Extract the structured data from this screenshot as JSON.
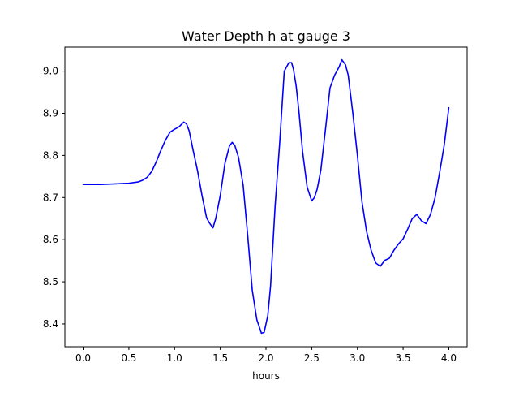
{
  "chart_data": {
    "type": "line",
    "title": "Water Depth h at gauge 3",
    "xlabel": "hours",
    "ylabel": "",
    "xlim": [
      -0.2,
      4.2
    ],
    "ylim": [
      8.346,
      9.057
    ],
    "xticks": [
      0.0,
      0.5,
      1.0,
      1.5,
      2.0,
      2.5,
      3.0,
      3.5,
      4.0
    ],
    "xtick_labels": [
      "0.0",
      "0.5",
      "1.0",
      "1.5",
      "2.0",
      "2.5",
      "3.0",
      "3.5",
      "4.0"
    ],
    "yticks": [
      8.4,
      8.5,
      8.6,
      8.7,
      8.8,
      8.9,
      9.0
    ],
    "ytick_labels": [
      "8.4",
      "8.5",
      "8.6",
      "8.7",
      "8.8",
      "8.9",
      "9.0"
    ],
    "grid": false,
    "legend": "none",
    "series": [
      {
        "color": "#0000ff",
        "x": [
          0.0,
          0.1,
          0.2,
          0.3,
          0.4,
          0.5,
          0.6,
          0.65,
          0.7,
          0.75,
          0.8,
          0.85,
          0.9,
          0.95,
          1.0,
          1.05,
          1.1,
          1.13,
          1.16,
          1.2,
          1.25,
          1.3,
          1.35,
          1.38,
          1.42,
          1.45,
          1.5,
          1.55,
          1.6,
          1.63,
          1.66,
          1.7,
          1.75,
          1.8,
          1.85,
          1.9,
          1.95,
          1.98,
          2.02,
          2.05,
          2.1,
          2.15,
          2.2,
          2.25,
          2.28,
          2.3,
          2.33,
          2.36,
          2.4,
          2.45,
          2.5,
          2.53,
          2.56,
          2.6,
          2.65,
          2.7,
          2.75,
          2.8,
          2.83,
          2.87,
          2.9,
          2.95,
          3.0,
          3.05,
          3.1,
          3.15,
          3.2,
          3.25,
          3.3,
          3.35,
          3.4,
          3.45,
          3.5,
          3.55,
          3.6,
          3.65,
          3.7,
          3.75,
          3.8,
          3.85,
          3.9,
          3.95,
          4.0
        ],
        "y": [
          8.731,
          8.731,
          8.731,
          8.732,
          8.733,
          8.734,
          8.737,
          8.741,
          8.748,
          8.762,
          8.785,
          8.812,
          8.836,
          8.855,
          8.862,
          8.868,
          8.879,
          8.875,
          8.858,
          8.815,
          8.765,
          8.705,
          8.652,
          8.64,
          8.628,
          8.65,
          8.705,
          8.78,
          8.822,
          8.831,
          8.823,
          8.795,
          8.73,
          8.61,
          8.48,
          8.41,
          8.378,
          8.38,
          8.42,
          8.49,
          8.68,
          8.83,
          9.0,
          9.02,
          9.02,
          9.005,
          8.965,
          8.905,
          8.81,
          8.725,
          8.692,
          8.7,
          8.72,
          8.765,
          8.86,
          8.96,
          8.99,
          9.01,
          9.027,
          9.015,
          8.99,
          8.9,
          8.8,
          8.69,
          8.62,
          8.575,
          8.545,
          8.537,
          8.551,
          8.556,
          8.575,
          8.59,
          8.602,
          8.625,
          8.65,
          8.66,
          8.645,
          8.638,
          8.66,
          8.7,
          8.76,
          8.825,
          8.913
        ]
      }
    ]
  }
}
